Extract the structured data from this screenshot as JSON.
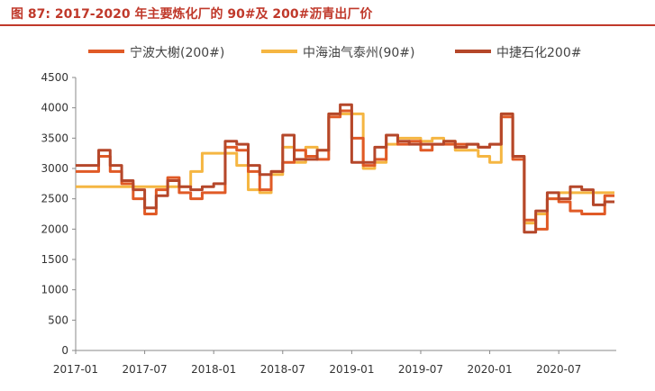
{
  "figure": {
    "label": "图 87:",
    "title": "2017-2020 年主要炼化厂的 90#及 200#沥青出厂价",
    "title_color": "#c0392b"
  },
  "chart_data": {
    "type": "line",
    "title": "2017-2020 年主要炼化厂的 90#及 200#沥青出厂价",
    "xlabel": "",
    "ylabel": "",
    "ylim": [
      0,
      4500
    ],
    "xlim": [
      "2017-01",
      "2020-12"
    ],
    "y_ticks": [
      0,
      500,
      1000,
      1500,
      2000,
      2500,
      3000,
      3500,
      4000,
      4500
    ],
    "x_ticks": [
      "2017-01",
      "2017-07",
      "2018-01",
      "2018-07",
      "2019-01",
      "2019-07",
      "2020-01",
      "2020-07"
    ],
    "grid": false,
    "legend": "top",
    "series": [
      {
        "name": "宁波大榭(200#)",
        "color": "#e05a26",
        "x": [
          "2017-01",
          "2017-02",
          "2017-03",
          "2017-04",
          "2017-05",
          "2017-06",
          "2017-07",
          "2017-08",
          "2017-09",
          "2017-10",
          "2017-11",
          "2017-12",
          "2018-01",
          "2018-02",
          "2018-03",
          "2018-04",
          "2018-05",
          "2018-06",
          "2018-07",
          "2018-08",
          "2018-09",
          "2018-10",
          "2018-11",
          "2018-12",
          "2019-01",
          "2019-02",
          "2019-03",
          "2019-04",
          "2019-05",
          "2019-06",
          "2019-07",
          "2019-08",
          "2019-09",
          "2019-10",
          "2019-11",
          "2019-12",
          "2020-01",
          "2020-02",
          "2020-03",
          "2020-04",
          "2020-05",
          "2020-06",
          "2020-07",
          "2020-08",
          "2020-09",
          "2020-10",
          "2020-11"
        ],
        "values": [
          2950,
          2950,
          3200,
          2950,
          2750,
          2500,
          2250,
          2650,
          2850,
          2600,
          2500,
          2600,
          2600,
          3350,
          3300,
          2950,
          2650,
          2950,
          3100,
          3300,
          3200,
          3150,
          3850,
          3950,
          3500,
          3050,
          3150,
          3550,
          3400,
          3450,
          3300,
          3400,
          3400,
          3400,
          3400,
          3350,
          3400,
          3850,
          3150,
          2150,
          2000,
          2500,
          2450,
          2300,
          2250,
          2250,
          2550
        ]
      },
      {
        "name": "中海油气泰州(90#)",
        "color": "#f5b642",
        "x": [
          "2017-01",
          "2017-02",
          "2017-03",
          "2017-04",
          "2017-05",
          "2017-06",
          "2017-07",
          "2017-08",
          "2017-09",
          "2017-10",
          "2017-11",
          "2017-12",
          "2018-01",
          "2018-02",
          "2018-03",
          "2018-04",
          "2018-05",
          "2018-06",
          "2018-07",
          "2018-08",
          "2018-09",
          "2018-10",
          "2018-11",
          "2018-12",
          "2019-01",
          "2019-02",
          "2019-03",
          "2019-04",
          "2019-05",
          "2019-06",
          "2019-07",
          "2019-08",
          "2019-09",
          "2019-10",
          "2019-11",
          "2019-12",
          "2020-01",
          "2020-02",
          "2020-03",
          "2020-04",
          "2020-05",
          "2020-06",
          "2020-07",
          "2020-08",
          "2020-09",
          "2020-10",
          "2020-11"
        ],
        "values": [
          2700,
          2700,
          2700,
          2700,
          2700,
          2700,
          2700,
          2700,
          2700,
          2700,
          2950,
          3250,
          3250,
          3250,
          3050,
          2650,
          2600,
          2900,
          3350,
          3100,
          3350,
          3300,
          3900,
          3900,
          3900,
          3000,
          3100,
          3400,
          3500,
          3500,
          3450,
          3500,
          3450,
          3300,
          3300,
          3200,
          3100,
          3900,
          3200,
          2100,
          2250,
          2500,
          2600,
          2600,
          2600,
          2600,
          2600
        ]
      },
      {
        "name": "中捷石化200#",
        "color": "#b5472a",
        "x": [
          "2017-01",
          "2017-02",
          "2017-03",
          "2017-04",
          "2017-05",
          "2017-06",
          "2017-07",
          "2017-08",
          "2017-09",
          "2017-10",
          "2017-11",
          "2017-12",
          "2018-01",
          "2018-02",
          "2018-03",
          "2018-04",
          "2018-05",
          "2018-06",
          "2018-07",
          "2018-08",
          "2018-09",
          "2018-10",
          "2018-11",
          "2018-12",
          "2019-01",
          "2019-02",
          "2019-03",
          "2019-04",
          "2019-05",
          "2019-06",
          "2019-07",
          "2019-08",
          "2019-09",
          "2019-10",
          "2019-11",
          "2019-12",
          "2020-01",
          "2020-02",
          "2020-03",
          "2020-04",
          "2020-05",
          "2020-06",
          "2020-07",
          "2020-08",
          "2020-09",
          "2020-10",
          "2020-11"
        ],
        "values": [
          3050,
          3050,
          3300,
          3050,
          2800,
          2650,
          2350,
          2550,
          2800,
          2700,
          2650,
          2700,
          2750,
          3450,
          3400,
          3050,
          2900,
          2950,
          3550,
          3150,
          3150,
          3300,
          3900,
          4050,
          3100,
          3100,
          3350,
          3550,
          3450,
          3400,
          3400,
          3400,
          3450,
          3350,
          3400,
          3350,
          3400,
          3900,
          3200,
          1950,
          2300,
          2600,
          2500,
          2700,
          2650,
          2400,
          2450
        ]
      }
    ]
  }
}
